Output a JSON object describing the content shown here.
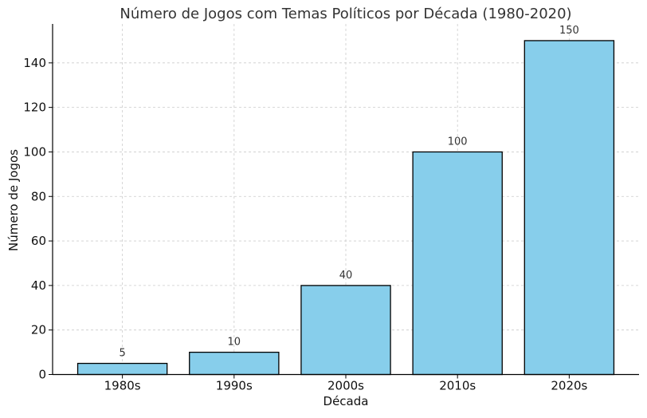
{
  "chart_data": {
    "type": "bar",
    "title": "Número de Jogos com Temas Políticos por Década (1980-2020)",
    "xlabel": "Década",
    "ylabel": "Número de Jogos",
    "categories": [
      "1980s",
      "1990s",
      "2000s",
      "2010s",
      "2020s"
    ],
    "values": [
      5,
      10,
      40,
      100,
      150
    ],
    "data_labels": [
      "5",
      "10",
      "40",
      "100",
      "150"
    ],
    "ylim": [
      0,
      157.5
    ],
    "yticks": [
      0,
      20,
      40,
      60,
      80,
      100,
      120,
      140
    ],
    "grid": true,
    "colors": {
      "bar_fill": "#87ceeb",
      "bar_edge": "#000000",
      "grid": "#cccccc",
      "text": "#333333"
    }
  }
}
